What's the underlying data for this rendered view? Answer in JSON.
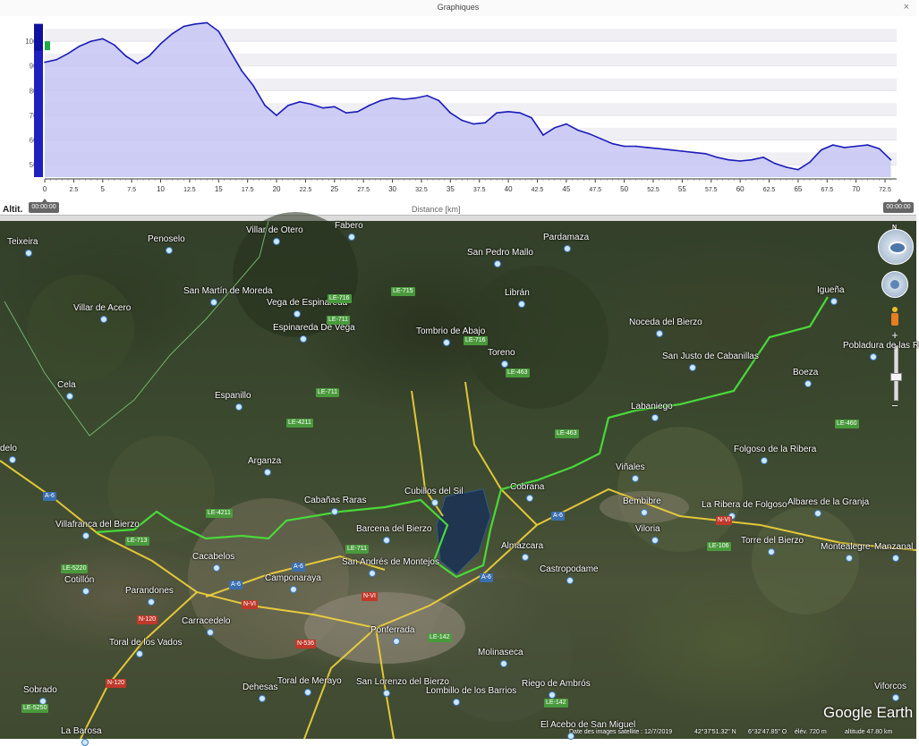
{
  "window": {
    "title": "Graphiques",
    "close_glyph": "×"
  },
  "graph": {
    "ylabel": "Altit.",
    "xlabel": "Distance [km]",
    "time_start": "00:00:00",
    "time_end": "00:00:00",
    "y_ticks": [
      "500",
      "600",
      "700",
      "800",
      "900",
      "1000"
    ],
    "x_ticks": [
      "0",
      "2.5",
      "5",
      "7.5",
      "10",
      "12.5",
      "15",
      "17.5",
      "20",
      "22.5",
      "25",
      "27.5",
      "30",
      "32.5",
      "35",
      "37.5",
      "40",
      "42.5",
      "45",
      "47.5",
      "50",
      "52.5",
      "55",
      "57.5",
      "60",
      "62.5",
      "65",
      "67.5",
      "70",
      "72.5"
    ]
  },
  "chart_data": {
    "type": "area",
    "xlabel": "Distance [km]",
    "ylabel": "Altit.",
    "xlim": [
      0,
      73.5
    ],
    "ylim": [
      450,
      1080
    ],
    "grid": true,
    "colors": {
      "line": "#1a1ab8",
      "fill": "#c6c6f4"
    },
    "x": [
      0,
      1,
      2,
      3,
      4,
      5,
      6,
      7,
      8,
      9,
      10,
      11,
      12,
      13,
      14,
      15,
      16,
      17,
      18,
      19,
      20,
      21,
      22,
      23,
      24,
      25,
      26,
      27,
      28,
      29,
      30,
      31,
      32,
      33,
      34,
      35,
      36,
      37,
      38,
      39,
      40,
      41,
      42,
      43,
      44,
      45,
      46,
      47,
      48,
      49,
      50,
      51,
      52,
      53,
      54,
      55,
      56,
      57,
      58,
      59,
      60,
      61,
      62,
      63,
      64,
      65,
      66,
      67,
      68,
      69,
      70,
      71,
      72,
      73
    ],
    "y": [
      915,
      925,
      950,
      980,
      1000,
      1010,
      985,
      940,
      910,
      940,
      990,
      1030,
      1060,
      1070,
      1075,
      1040,
      960,
      880,
      820,
      740,
      700,
      740,
      755,
      745,
      730,
      735,
      710,
      715,
      740,
      760,
      770,
      765,
      770,
      780,
      760,
      710,
      680,
      665,
      670,
      710,
      715,
      710,
      690,
      620,
      650,
      665,
      640,
      625,
      605,
      585,
      575,
      575,
      570,
      565,
      560,
      555,
      550,
      545,
      530,
      520,
      515,
      520,
      530,
      505,
      490,
      480,
      510,
      560,
      580,
      570,
      575,
      580,
      565,
      520
    ]
  },
  "map": {
    "places": [
      {
        "name": "Teixeira"
      },
      {
        "name": "Penoselo"
      },
      {
        "name": "Villar de Otero"
      },
      {
        "name": "Fabero"
      },
      {
        "name": "Pardamaza"
      },
      {
        "name": "San Pedro Mallo"
      },
      {
        "name": "San Martín de Moreda"
      },
      {
        "name": "Vega de Espinareda"
      },
      {
        "name": "Librán"
      },
      {
        "name": "Igueña"
      },
      {
        "name": "Villar de Acero"
      },
      {
        "name": "Espinareda De Vega"
      },
      {
        "name": "Tombrio de Abajo"
      },
      {
        "name": "Noceda del Bierzo"
      },
      {
        "name": "Pobladura de las R"
      },
      {
        "name": "Toreno"
      },
      {
        "name": "San Justo de Cabanillas"
      },
      {
        "name": "Cela"
      },
      {
        "name": "Espanillo"
      },
      {
        "name": "Boeza"
      },
      {
        "name": "Labaniego"
      },
      {
        "name": "delo"
      },
      {
        "name": "Folgoso de la Ribera"
      },
      {
        "name": "Arganza"
      },
      {
        "name": "Viñales"
      },
      {
        "name": "Cubillos del Sil"
      },
      {
        "name": "Cobrana"
      },
      {
        "name": "Cabañas Raras"
      },
      {
        "name": "Bembibre"
      },
      {
        "name": "La Ribera de Folgoso"
      },
      {
        "name": "Albares de la Granja"
      },
      {
        "name": "Villafranca del Bierzo"
      },
      {
        "name": "Cacabelos"
      },
      {
        "name": "Barcena del Bierzo"
      },
      {
        "name": "Almázcara"
      },
      {
        "name": "Viloria"
      },
      {
        "name": "Torre del Bierzo"
      },
      {
        "name": "Montealegre"
      },
      {
        "name": "Manzanal"
      },
      {
        "name": "San Andrés de Montejos"
      },
      {
        "name": "Castropodame"
      },
      {
        "name": "Cotillón"
      },
      {
        "name": "Camponaraya"
      },
      {
        "name": "Parandones"
      },
      {
        "name": "Carracedelo"
      },
      {
        "name": "Ponferrada"
      },
      {
        "name": "Toral de los Vados"
      },
      {
        "name": "Molinaseca"
      },
      {
        "name": "Sobrado"
      },
      {
        "name": "Dehesas"
      },
      {
        "name": "Toral de Merayo"
      },
      {
        "name": "San Lorenzo del Bierzo"
      },
      {
        "name": "Lombillo de los Barrios"
      },
      {
        "name": "Riego de Ambrós"
      },
      {
        "name": "Viforcos"
      },
      {
        "name": "La Barosa"
      },
      {
        "name": "El Acebo de San Miguel"
      }
    ],
    "roads": [
      {
        "label": "LE-716",
        "c": "green"
      },
      {
        "label": "LE-715",
        "c": "green"
      },
      {
        "label": "LE-711",
        "c": "green"
      },
      {
        "label": "LE-716",
        "c": "green"
      },
      {
        "label": "LE-463",
        "c": "green"
      },
      {
        "label": "LE-711",
        "c": "green"
      },
      {
        "label": "LE-4211",
        "c": "green"
      },
      {
        "label": "LE-463",
        "c": "green"
      },
      {
        "label": "LE-460",
        "c": "green"
      },
      {
        "label": "A-6",
        "c": "blue"
      },
      {
        "label": "LE-4211",
        "c": "green"
      },
      {
        "label": "LE-713",
        "c": "green"
      },
      {
        "label": "A-6",
        "c": "blue"
      },
      {
        "label": "N-VI",
        "c": "red"
      },
      {
        "label": "LE-106",
        "c": "green"
      },
      {
        "label": "LE-711",
        "c": "green"
      },
      {
        "label": "LE-5220",
        "c": "green"
      },
      {
        "label": "A-6",
        "c": "blue"
      },
      {
        "label": "A-6",
        "c": "blue"
      },
      {
        "label": "A-6",
        "c": "blue"
      },
      {
        "label": "N-VI",
        "c": "red"
      },
      {
        "label": "N-VI",
        "c": "red"
      },
      {
        "label": "N-120",
        "c": "red"
      },
      {
        "label": "LE-142",
        "c": "green"
      },
      {
        "label": "N-536",
        "c": "red"
      },
      {
        "label": "N-120",
        "c": "red"
      },
      {
        "label": "LE-142",
        "c": "green"
      },
      {
        "label": "LE-5250",
        "c": "green"
      }
    ],
    "compass": "N",
    "zoom_in": "+",
    "zoom_out": "−",
    "logo": "Google Earth",
    "status": {
      "date": "Date des images satellite : 12/7/2019",
      "lat": "42°37'51.32\" N",
      "lon": "6°32'47.85\" O",
      "elev": "élév.  720 m",
      "alt": "altitude  47.80 km"
    }
  }
}
